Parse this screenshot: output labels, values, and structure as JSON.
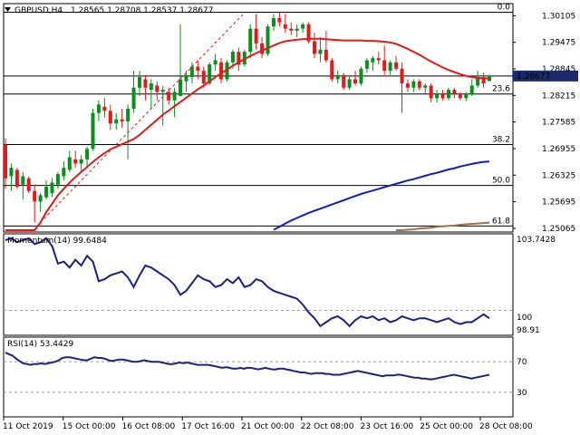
{
  "header": {
    "symbol": "GBPUSD,H4",
    "ohlc": "1.28565 1.28708 1.28537 1.28677"
  },
  "colors": {
    "bull": "#0b8f1c",
    "bear": "#e01b1b",
    "ma_fast": "#e01b1b",
    "ma_mid": "#1020c0",
    "ma_slow": "#a0704a",
    "indicator": "#1a237e",
    "price_tag_bg": "#1a2a6c",
    "price_tag_text": "#ffffff"
  },
  "icons": {
    "symbol_dropdown": "triangle-down-icon"
  },
  "chart_data": [
    {
      "type": "candlestick",
      "title": "GBPUSD,H4",
      "x_labels": [
        "11 Oct 2019",
        "15 Oct 00:00",
        "16 Oct 08:00",
        "17 Oct 16:00",
        "21 Oct 00:00",
        "22 Oct 08:00",
        "23 Oct 16:00",
        "25 Oct 00:00",
        "28 Oct 08:00"
      ],
      "y_ticks": [
        "1.30105",
        "1.29475",
        "1.28845",
        "1.28215",
        "1.27585",
        "1.26955",
        "1.26325",
        "1.25695",
        "1.25065"
      ],
      "ylim": [
        1.2502,
        1.3035
      ],
      "last_price": "1.28677",
      "last_price_value": 1.28677,
      "fib_levels": [
        {
          "label": "0.0",
          "value": 1.3019
        },
        {
          "label": "23.6",
          "value": 1.2825
        },
        {
          "label": "38.2",
          "value": 1.2705
        },
        {
          "label": "50.0",
          "value": 1.2608
        },
        {
          "label": "61.8",
          "value": 1.2512
        }
      ],
      "candles": [
        {
          "o": 1.2705,
          "h": 1.272,
          "l": 1.26,
          "c": 1.2625
        },
        {
          "o": 1.263,
          "h": 1.266,
          "l": 1.2595,
          "c": 1.265
        },
        {
          "o": 1.2645,
          "h": 1.265,
          "l": 1.26,
          "c": 1.2605
        },
        {
          "o": 1.261,
          "h": 1.264,
          "l": 1.2575,
          "c": 1.263
        },
        {
          "o": 1.2625,
          "h": 1.263,
          "l": 1.259,
          "c": 1.2595
        },
        {
          "o": 1.2595,
          "h": 1.261,
          "l": 1.252,
          "c": 1.257
        },
        {
          "o": 1.257,
          "h": 1.259,
          "l": 1.2545,
          "c": 1.2585
        },
        {
          "o": 1.258,
          "h": 1.262,
          "l": 1.2575,
          "c": 1.2605
        },
        {
          "o": 1.259,
          "h": 1.2625,
          "l": 1.258,
          "c": 1.2615
        },
        {
          "o": 1.261,
          "h": 1.264,
          "l": 1.26,
          "c": 1.2635
        },
        {
          "o": 1.263,
          "h": 1.2665,
          "l": 1.262,
          "c": 1.265
        },
        {
          "o": 1.2645,
          "h": 1.269,
          "l": 1.264,
          "c": 1.2675
        },
        {
          "o": 1.267,
          "h": 1.269,
          "l": 1.265,
          "c": 1.266
        },
        {
          "o": 1.266,
          "h": 1.268,
          "l": 1.264,
          "c": 1.267
        },
        {
          "o": 1.267,
          "h": 1.27,
          "l": 1.2655,
          "c": 1.2695
        },
        {
          "o": 1.2695,
          "h": 1.279,
          "l": 1.269,
          "c": 1.278
        },
        {
          "o": 1.278,
          "h": 1.281,
          "l": 1.276,
          "c": 1.28
        },
        {
          "o": 1.2795,
          "h": 1.2815,
          "l": 1.277,
          "c": 1.2785
        },
        {
          "o": 1.2785,
          "h": 1.28,
          "l": 1.274,
          "c": 1.2755
        },
        {
          "o": 1.2755,
          "h": 1.278,
          "l": 1.274,
          "c": 1.2765
        },
        {
          "o": 1.2765,
          "h": 1.279,
          "l": 1.2745,
          "c": 1.276
        },
        {
          "o": 1.276,
          "h": 1.28,
          "l": 1.267,
          "c": 1.279
        },
        {
          "o": 1.279,
          "h": 1.288,
          "l": 1.278,
          "c": 1.284
        },
        {
          "o": 1.284,
          "h": 1.288,
          "l": 1.282,
          "c": 1.2865
        },
        {
          "o": 1.286,
          "h": 1.287,
          "l": 1.281,
          "c": 1.284
        },
        {
          "o": 1.2835,
          "h": 1.286,
          "l": 1.279,
          "c": 1.285
        },
        {
          "o": 1.2845,
          "h": 1.2855,
          "l": 1.281,
          "c": 1.283
        },
        {
          "o": 1.283,
          "h": 1.2845,
          "l": 1.275,
          "c": 1.2835
        },
        {
          "o": 1.283,
          "h": 1.284,
          "l": 1.28,
          "c": 1.281
        },
        {
          "o": 1.281,
          "h": 1.284,
          "l": 1.277,
          "c": 1.283
        },
        {
          "o": 1.282,
          "h": 1.299,
          "l": 1.282,
          "c": 1.286
        },
        {
          "o": 1.2855,
          "h": 1.288,
          "l": 1.283,
          "c": 1.287
        },
        {
          "o": 1.2865,
          "h": 1.29,
          "l": 1.285,
          "c": 1.289
        },
        {
          "o": 1.289,
          "h": 1.2905,
          "l": 1.286,
          "c": 1.288
        },
        {
          "o": 1.288,
          "h": 1.289,
          "l": 1.284,
          "c": 1.285
        },
        {
          "o": 1.285,
          "h": 1.29,
          "l": 1.2845,
          "c": 1.2895
        },
        {
          "o": 1.2895,
          "h": 1.292,
          "l": 1.288,
          "c": 1.2905
        },
        {
          "o": 1.29,
          "h": 1.291,
          "l": 1.285,
          "c": 1.286
        },
        {
          "o": 1.286,
          "h": 1.2905,
          "l": 1.2855,
          "c": 1.29
        },
        {
          "o": 1.29,
          "h": 1.293,
          "l": 1.2885,
          "c": 1.2925
        },
        {
          "o": 1.2925,
          "h": 1.2935,
          "l": 1.288,
          "c": 1.2895
        },
        {
          "o": 1.2895,
          "h": 1.293,
          "l": 1.289,
          "c": 1.2925
        },
        {
          "o": 1.2925,
          "h": 1.299,
          "l": 1.291,
          "c": 1.298
        },
        {
          "o": 1.298,
          "h": 1.3015,
          "l": 1.293,
          "c": 1.2945
        },
        {
          "o": 1.2945,
          "h": 1.296,
          "l": 1.291,
          "c": 1.292
        },
        {
          "o": 1.292,
          "h": 1.299,
          "l": 1.2915,
          "c": 1.2985
        },
        {
          "o": 1.2985,
          "h": 1.3015,
          "l": 1.2975,
          "c": 1.3005
        },
        {
          "o": 1.3005,
          "h": 1.3018,
          "l": 1.2985,
          "c": 1.2995
        },
        {
          "o": 1.299,
          "h": 1.3015,
          "l": 1.297,
          "c": 1.298
        },
        {
          "o": 1.298,
          "h": 1.2995,
          "l": 1.2965,
          "c": 1.2975
        },
        {
          "o": 1.2975,
          "h": 1.299,
          "l": 1.296,
          "c": 1.298
        },
        {
          "o": 1.298,
          "h": 1.2995,
          "l": 1.297,
          "c": 1.299
        },
        {
          "o": 1.299,
          "h": 1.2995,
          "l": 1.2945,
          "c": 1.295
        },
        {
          "o": 1.295,
          "h": 1.297,
          "l": 1.291,
          "c": 1.292
        },
        {
          "o": 1.292,
          "h": 1.296,
          "l": 1.29,
          "c": 1.293
        },
        {
          "o": 1.293,
          "h": 1.2975,
          "l": 1.29,
          "c": 1.2905
        },
        {
          "o": 1.2905,
          "h": 1.291,
          "l": 1.2855,
          "c": 1.286
        },
        {
          "o": 1.286,
          "h": 1.288,
          "l": 1.285,
          "c": 1.287
        },
        {
          "o": 1.287,
          "h": 1.2875,
          "l": 1.2835,
          "c": 1.284
        },
        {
          "o": 1.284,
          "h": 1.287,
          "l": 1.2835,
          "c": 1.286
        },
        {
          "o": 1.286,
          "h": 1.288,
          "l": 1.2845,
          "c": 1.285
        },
        {
          "o": 1.285,
          "h": 1.289,
          "l": 1.2845,
          "c": 1.2885
        },
        {
          "o": 1.2885,
          "h": 1.291,
          "l": 1.2875,
          "c": 1.2905
        },
        {
          "o": 1.29,
          "h": 1.2915,
          "l": 1.288,
          "c": 1.291
        },
        {
          "o": 1.291,
          "h": 1.2925,
          "l": 1.2895,
          "c": 1.2905
        },
        {
          "o": 1.2905,
          "h": 1.294,
          "l": 1.287,
          "c": 1.288
        },
        {
          "o": 1.288,
          "h": 1.2905,
          "l": 1.287,
          "c": 1.29
        },
        {
          "o": 1.29,
          "h": 1.2915,
          "l": 1.288,
          "c": 1.2885
        },
        {
          "o": 1.2885,
          "h": 1.29,
          "l": 1.278,
          "c": 1.285
        },
        {
          "o": 1.285,
          "h": 1.286,
          "l": 1.283,
          "c": 1.284
        },
        {
          "o": 1.284,
          "h": 1.286,
          "l": 1.283,
          "c": 1.2855
        },
        {
          "o": 1.2855,
          "h": 1.286,
          "l": 1.2835,
          "c": 1.284
        },
        {
          "o": 1.284,
          "h": 1.285,
          "l": 1.2825,
          "c": 1.2845
        },
        {
          "o": 1.2845,
          "h": 1.285,
          "l": 1.2805,
          "c": 1.2815
        },
        {
          "o": 1.2815,
          "h": 1.2835,
          "l": 1.2805,
          "c": 1.2825
        },
        {
          "o": 1.2825,
          "h": 1.2835,
          "l": 1.281,
          "c": 1.2815
        },
        {
          "o": 1.2815,
          "h": 1.284,
          "l": 1.281,
          "c": 1.2835
        },
        {
          "o": 1.2835,
          "h": 1.284,
          "l": 1.2815,
          "c": 1.2825
        },
        {
          "o": 1.2825,
          "h": 1.283,
          "l": 1.281,
          "c": 1.2815
        },
        {
          "o": 1.2815,
          "h": 1.283,
          "l": 1.2808,
          "c": 1.2825
        },
        {
          "o": 1.2825,
          "h": 1.286,
          "l": 1.282,
          "c": 1.2845
        },
        {
          "o": 1.2845,
          "h": 1.288,
          "l": 1.284,
          "c": 1.2865
        },
        {
          "o": 1.2865,
          "h": 1.2875,
          "l": 1.284,
          "c": 1.285
        },
        {
          "o": 1.2856,
          "h": 1.2871,
          "l": 1.2854,
          "c": 1.2868
        }
      ],
      "ma_fast": [
        1.236,
        1.239,
        1.242,
        1.2445,
        1.247,
        1.2495,
        1.252,
        1.2545,
        1.2565,
        1.2585,
        1.26,
        1.2615,
        1.2628,
        1.264,
        1.2652,
        1.2664,
        1.2675,
        1.2685,
        1.2694,
        1.27,
        1.2706,
        1.2712,
        1.2718,
        1.2728,
        1.274,
        1.2752,
        1.2764,
        1.2776,
        1.2786,
        1.2796,
        1.2806,
        1.2816,
        1.2826,
        1.2836,
        1.2845,
        1.2855,
        1.2865,
        1.2874,
        1.2883,
        1.2892,
        1.29,
        1.2908,
        1.2915,
        1.2922,
        1.2928,
        1.2934,
        1.294,
        1.2946,
        1.295,
        1.2952,
        1.2954,
        1.2955,
        1.2956,
        1.2956,
        1.2956,
        1.2955,
        1.2954,
        1.2953,
        1.2952,
        1.2952,
        1.2952,
        1.2952,
        1.2951,
        1.2951,
        1.295,
        1.2949,
        1.2947,
        1.2944,
        1.2938,
        1.2932,
        1.2925,
        1.2918,
        1.291,
        1.2902,
        1.2895,
        1.2888,
        1.2882,
        1.2877,
        1.2872,
        1.2868,
        1.2865,
        1.2863,
        1.2862,
        1.2862
      ],
      "ma_mid": [
        null,
        null,
        null,
        null,
        null,
        null,
        null,
        null,
        null,
        null,
        null,
        null,
        null,
        null,
        null,
        null,
        null,
        null,
        null,
        null,
        null,
        null,
        null,
        null,
        null,
        null,
        null,
        null,
        null,
        null,
        null,
        null,
        null,
        null,
        null,
        null,
        null,
        null,
        null,
        null,
        null,
        null,
        null,
        null,
        null,
        null,
        1.2503,
        1.251,
        1.2518,
        1.2525,
        1.2531,
        1.2537,
        1.2543,
        1.2548,
        1.2553,
        1.2558,
        1.2563,
        1.2568,
        1.2573,
        1.2578,
        1.2583,
        1.2588,
        1.2592,
        1.2596,
        1.26,
        1.2604,
        1.2608,
        1.2612,
        1.2616,
        1.262,
        1.2623,
        1.2627,
        1.2631,
        1.2635,
        1.2638,
        1.2642,
        1.2646,
        1.2649,
        1.2653,
        1.2656,
        1.2659,
        1.2662,
        1.2664,
        1.2665
      ],
      "ma_slow": [
        null,
        null,
        null,
        null,
        null,
        null,
        null,
        null,
        null,
        null,
        null,
        null,
        null,
        null,
        null,
        null,
        null,
        null,
        null,
        null,
        null,
        null,
        null,
        null,
        null,
        null,
        null,
        null,
        null,
        null,
        null,
        null,
        null,
        null,
        null,
        null,
        null,
        null,
        null,
        null,
        null,
        null,
        null,
        null,
        null,
        null,
        null,
        null,
        null,
        null,
        null,
        null,
        null,
        null,
        null,
        null,
        null,
        null,
        null,
        null,
        null,
        null,
        null,
        null,
        null,
        null,
        null,
        1.25,
        1.2502,
        1.2503,
        1.2504,
        1.2506,
        1.2507,
        1.2508,
        1.251,
        1.2511,
        1.2512,
        1.2513,
        1.2515,
        1.2516,
        1.2517,
        1.2518,
        1.2519,
        1.252
      ]
    },
    {
      "type": "line",
      "name": "Momentum(14)",
      "title": "Momentum(14) 99.6484",
      "y_ticks": [
        "103.7428",
        "100",
        "98.91"
      ],
      "ylim": [
        98.91,
        103.7428
      ],
      "reference_level": 100,
      "values": [
        103.6,
        103.7,
        103.5,
        103.6,
        103.7,
        103.4,
        103.5,
        103.7,
        103.3,
        102.4,
        102.5,
        102.2,
        102.6,
        102.3,
        102.8,
        102.5,
        101.5,
        101.6,
        101.8,
        101.9,
        102.0,
        101.7,
        101.2,
        101.8,
        102.3,
        102.2,
        102.0,
        101.8,
        101.6,
        101.3,
        100.8,
        101.0,
        101.4,
        101.8,
        101.6,
        101.5,
        101.2,
        101.3,
        101.6,
        101.4,
        101.7,
        101.2,
        101.3,
        101.6,
        101.5,
        101.2,
        101.0,
        100.9,
        100.8,
        100.7,
        100.6,
        100.3,
        99.9,
        99.6,
        99.2,
        99.4,
        99.6,
        99.7,
        99.5,
        99.2,
        99.5,
        99.7,
        99.6,
        99.7,
        99.5,
        99.6,
        99.4,
        99.5,
        99.7,
        99.6,
        99.5,
        99.6,
        99.6,
        99.5,
        99.4,
        99.5,
        99.6,
        99.4,
        99.3,
        99.4,
        99.4,
        99.6,
        99.8,
        99.6
      ]
    },
    {
      "type": "line",
      "name": "RSI(14)",
      "title": "RSI(14) 53.4429",
      "y_ticks": [
        "70",
        "30"
      ],
      "ylim": [
        0,
        100
      ],
      "reference_levels": [
        70,
        30
      ],
      "values": [
        82,
        80,
        78,
        74,
        71,
        68,
        67,
        66,
        67,
        67,
        68,
        67,
        68,
        69,
        70,
        72,
        75,
        76,
        76,
        75,
        74,
        73,
        72,
        72,
        74,
        76,
        75,
        75,
        74,
        72,
        71,
        72,
        73,
        73,
        72,
        71,
        70,
        70,
        71,
        72,
        71,
        70,
        70,
        70,
        69,
        68,
        67,
        67,
        68,
        69,
        68,
        69,
        68,
        67,
        66,
        66,
        66,
        66,
        65,
        64,
        63,
        62,
        63,
        62,
        61,
        61,
        62,
        61,
        62,
        62,
        61,
        60,
        61,
        62,
        61,
        60,
        60,
        61,
        61,
        60,
        59,
        58,
        57,
        56,
        56,
        55,
        54,
        55,
        55,
        55,
        54,
        54,
        53,
        53,
        53,
        54,
        55,
        56,
        57,
        58,
        57,
        56,
        55,
        54,
        53,
        52,
        51,
        52,
        52,
        52,
        53,
        53,
        52,
        51,
        50,
        49,
        49,
        48,
        48,
        47,
        47,
        48,
        49,
        50,
        51,
        52,
        53,
        52,
        51,
        50,
        49,
        48,
        49,
        50,
        51,
        52,
        53
      ]
    }
  ]
}
